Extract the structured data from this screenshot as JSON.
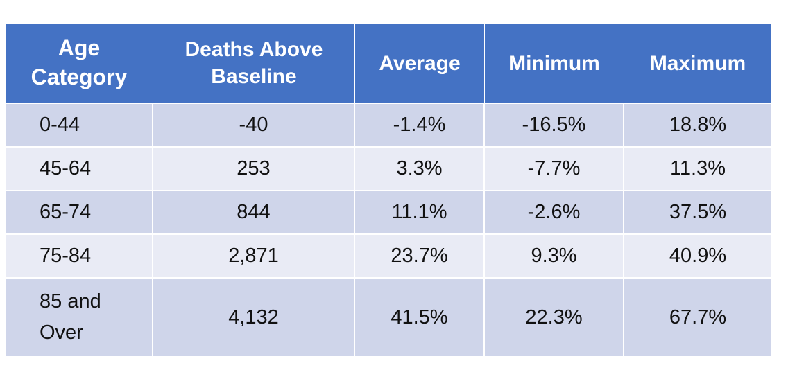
{
  "table": {
    "headers": {
      "age_line1": "Age",
      "age_line2": "Category",
      "deaths_line1": "Deaths Above",
      "deaths_line2": "Baseline",
      "average": "Average",
      "minimum": "Minimum",
      "maximum": "Maximum"
    },
    "rows": [
      {
        "age": "0-44",
        "deaths": "-40",
        "average": "-1.4%",
        "minimum": "-16.5%",
        "maximum": "18.8%"
      },
      {
        "age": "45-64",
        "deaths": "253",
        "average": "3.3%",
        "minimum": "-7.7%",
        "maximum": "11.3%"
      },
      {
        "age": "65-74",
        "deaths": "844",
        "average": "11.1%",
        "minimum": "-2.6%",
        "maximum": "37.5%"
      },
      {
        "age": "75-84",
        "deaths": "2,871",
        "average": "23.7%",
        "minimum": "9.3%",
        "maximum": "40.9%"
      },
      {
        "age_line1": "85 and",
        "age_line2": "Over",
        "deaths": "4,132",
        "average": "41.5%",
        "minimum": "22.3%",
        "maximum": "67.7%"
      }
    ]
  },
  "colors": {
    "header_bg": "#4472c4",
    "row_dark": "#cfd5ea",
    "row_light": "#e9ebf5"
  }
}
